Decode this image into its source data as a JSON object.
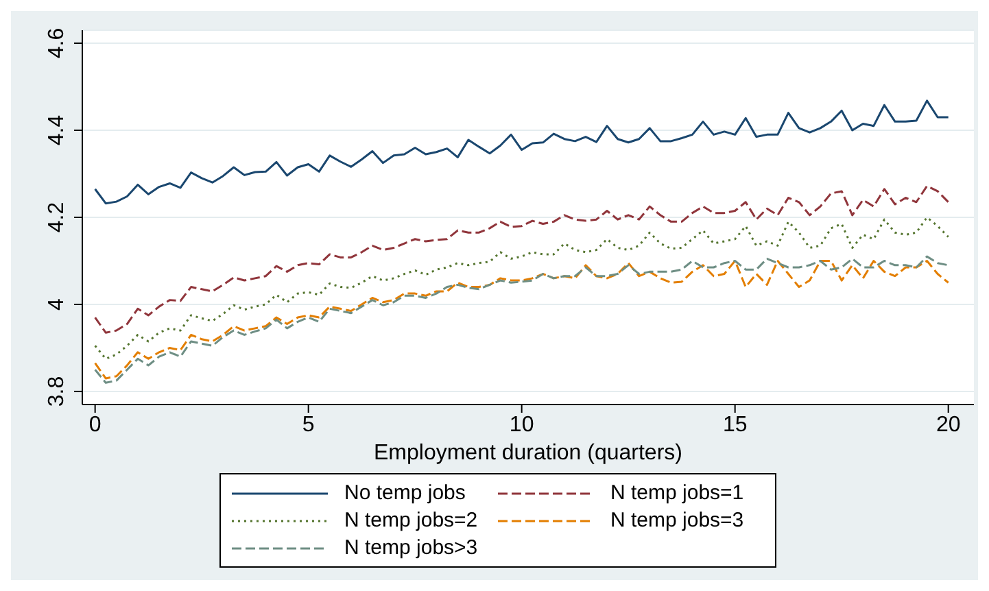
{
  "chart_data": {
    "type": "line",
    "xlabel": "Employment duration (quarters)",
    "x": [
      0,
      0.25,
      0.5,
      0.75,
      1,
      1.25,
      1.5,
      1.75,
      2,
      2.25,
      2.5,
      2.75,
      3,
      3.25,
      3.5,
      3.75,
      4,
      4.25,
      4.5,
      4.75,
      5,
      5.25,
      5.5,
      5.75,
      6,
      6.25,
      6.5,
      6.75,
      7,
      7.25,
      7.5,
      7.75,
      8,
      8.25,
      8.5,
      8.75,
      9,
      9.25,
      9.5,
      9.75,
      10,
      10.25,
      10.5,
      10.75,
      11,
      11.25,
      11.5,
      11.75,
      12,
      12.25,
      12.5,
      12.75,
      13,
      13.25,
      13.5,
      13.75,
      14,
      14.25,
      14.5,
      14.75,
      15,
      15.25,
      15.5,
      15.75,
      16,
      16.25,
      16.5,
      16.75,
      17,
      17.25,
      17.5,
      17.75,
      18,
      18.25,
      18.5,
      18.75,
      19,
      19.25,
      19.5,
      19.75,
      20
    ],
    "series": [
      {
        "name": "No temp jobs",
        "color": "#1a476f",
        "line_style": "solid",
        "values": [
          4.265,
          4.232,
          4.236,
          4.248,
          4.275,
          4.253,
          4.27,
          4.278,
          4.268,
          4.303,
          4.29,
          4.28,
          4.295,
          4.315,
          4.297,
          4.304,
          4.305,
          4.327,
          4.296,
          4.315,
          4.322,
          4.305,
          4.342,
          4.328,
          4.316,
          4.333,
          4.352,
          4.325,
          4.342,
          4.345,
          4.36,
          4.345,
          4.35,
          4.358,
          4.338,
          4.378,
          4.362,
          4.347,
          4.365,
          4.39,
          4.355,
          4.37,
          4.372,
          4.392,
          4.38,
          4.375,
          4.385,
          4.373,
          4.41,
          4.38,
          4.372,
          4.38,
          4.405,
          4.375,
          4.375,
          4.382,
          4.39,
          4.42,
          4.39,
          4.397,
          4.39,
          4.428,
          4.385,
          4.39,
          4.39,
          4.44,
          4.405,
          4.395,
          4.405,
          4.42,
          4.445,
          4.4,
          4.415,
          4.41,
          4.458,
          4.42,
          4.42,
          4.422,
          4.468,
          4.43,
          4.43
        ]
      },
      {
        "name": "N temp jobs=1",
        "color": "#90353b",
        "line_style": "dashed",
        "values": [
          3.97,
          3.935,
          3.94,
          3.955,
          3.99,
          3.975,
          3.995,
          4.01,
          4.008,
          4.04,
          4.035,
          4.03,
          4.045,
          4.062,
          4.055,
          4.06,
          4.065,
          4.088,
          4.075,
          4.09,
          4.095,
          4.092,
          4.115,
          4.108,
          4.108,
          4.12,
          4.135,
          4.125,
          4.13,
          4.14,
          4.15,
          4.145,
          4.148,
          4.15,
          4.17,
          4.165,
          4.165,
          4.175,
          4.19,
          4.178,
          4.18,
          4.192,
          4.185,
          4.19,
          4.205,
          4.195,
          4.192,
          4.195,
          4.215,
          4.195,
          4.205,
          4.195,
          4.225,
          4.205,
          4.19,
          4.19,
          4.21,
          4.225,
          4.21,
          4.21,
          4.215,
          4.235,
          4.195,
          4.22,
          4.205,
          4.245,
          4.235,
          4.205,
          4.225,
          4.255,
          4.26,
          4.205,
          4.24,
          4.225,
          4.265,
          4.23,
          4.245,
          4.235,
          4.272,
          4.26,
          4.235
        ]
      },
      {
        "name": "N temp jobs=2",
        "color": "#55752f",
        "line_style": "dotted",
        "values": [
          3.905,
          3.875,
          3.885,
          3.905,
          3.93,
          3.915,
          3.935,
          3.945,
          3.94,
          3.975,
          3.968,
          3.962,
          3.978,
          3.998,
          3.988,
          3.995,
          4.0,
          4.022,
          4.005,
          4.025,
          4.028,
          4.022,
          4.048,
          4.04,
          4.038,
          4.05,
          4.065,
          4.055,
          4.06,
          4.07,
          4.078,
          4.068,
          4.08,
          4.085,
          4.095,
          4.09,
          4.095,
          4.098,
          4.12,
          4.105,
          4.11,
          4.12,
          4.115,
          4.115,
          4.14,
          4.125,
          4.12,
          4.125,
          4.15,
          4.13,
          4.125,
          4.135,
          4.165,
          4.14,
          4.128,
          4.13,
          4.15,
          4.17,
          4.14,
          4.145,
          4.15,
          4.18,
          4.135,
          4.145,
          4.135,
          4.19,
          4.165,
          4.13,
          4.135,
          4.175,
          4.185,
          4.13,
          4.16,
          4.15,
          4.195,
          4.165,
          4.16,
          4.165,
          4.2,
          4.18,
          4.155
        ]
      },
      {
        "name": "N temp jobs=3",
        "color": "#e37e00",
        "line_style": "dashed",
        "values": [
          3.865,
          3.83,
          3.835,
          3.86,
          3.89,
          3.875,
          3.89,
          3.9,
          3.895,
          3.93,
          3.92,
          3.915,
          3.93,
          3.95,
          3.94,
          3.945,
          3.95,
          3.97,
          3.955,
          3.97,
          3.975,
          3.97,
          3.995,
          3.99,
          3.985,
          4.0,
          4.015,
          4.005,
          4.01,
          4.025,
          4.025,
          4.02,
          4.03,
          4.03,
          4.05,
          4.04,
          4.04,
          4.045,
          4.06,
          4.055,
          4.055,
          4.06,
          4.07,
          4.06,
          4.065,
          4.06,
          4.09,
          4.065,
          4.06,
          4.07,
          4.095,
          4.065,
          4.075,
          4.06,
          4.05,
          4.052,
          4.075,
          4.09,
          4.065,
          4.07,
          4.1,
          4.04,
          4.07,
          4.045,
          4.1,
          4.07,
          4.04,
          4.055,
          4.1,
          4.1,
          4.055,
          4.09,
          4.06,
          4.1,
          4.075,
          4.065,
          4.085,
          4.085,
          4.1,
          4.07,
          4.05
        ]
      },
      {
        "name": "N temp jobs>3",
        "color": "#6e8e84",
        "line_style": "dashed",
        "values": [
          3.85,
          3.82,
          3.825,
          3.85,
          3.875,
          3.86,
          3.88,
          3.89,
          3.88,
          3.915,
          3.91,
          3.905,
          3.925,
          3.94,
          3.93,
          3.938,
          3.945,
          3.965,
          3.945,
          3.96,
          3.97,
          3.96,
          3.99,
          3.985,
          3.98,
          3.995,
          4.01,
          3.998,
          4.005,
          4.02,
          4.02,
          4.015,
          4.025,
          4.04,
          4.045,
          4.038,
          4.035,
          4.045,
          4.055,
          4.05,
          4.052,
          4.055,
          4.07,
          4.06,
          4.065,
          4.065,
          4.085,
          4.065,
          4.065,
          4.07,
          4.09,
          4.07,
          4.075,
          4.075,
          4.075,
          4.08,
          4.1,
          4.085,
          4.085,
          4.095,
          4.1,
          4.08,
          4.08,
          4.105,
          4.095,
          4.085,
          4.085,
          4.09,
          4.1,
          4.08,
          4.085,
          4.105,
          4.085,
          4.085,
          4.1,
          4.09,
          4.09,
          4.085,
          4.11,
          4.095,
          4.09
        ]
      }
    ],
    "xlim": [
      -0.3,
      20.6
    ],
    "xticks": [
      0,
      5,
      10,
      15,
      20
    ],
    "ylim": [
      3.77,
      4.63
    ],
    "yticks": [
      3.8,
      4,
      4.2,
      4.4,
      4.6
    ],
    "grid": "y",
    "legend": "bottom",
    "marker": "none"
  }
}
